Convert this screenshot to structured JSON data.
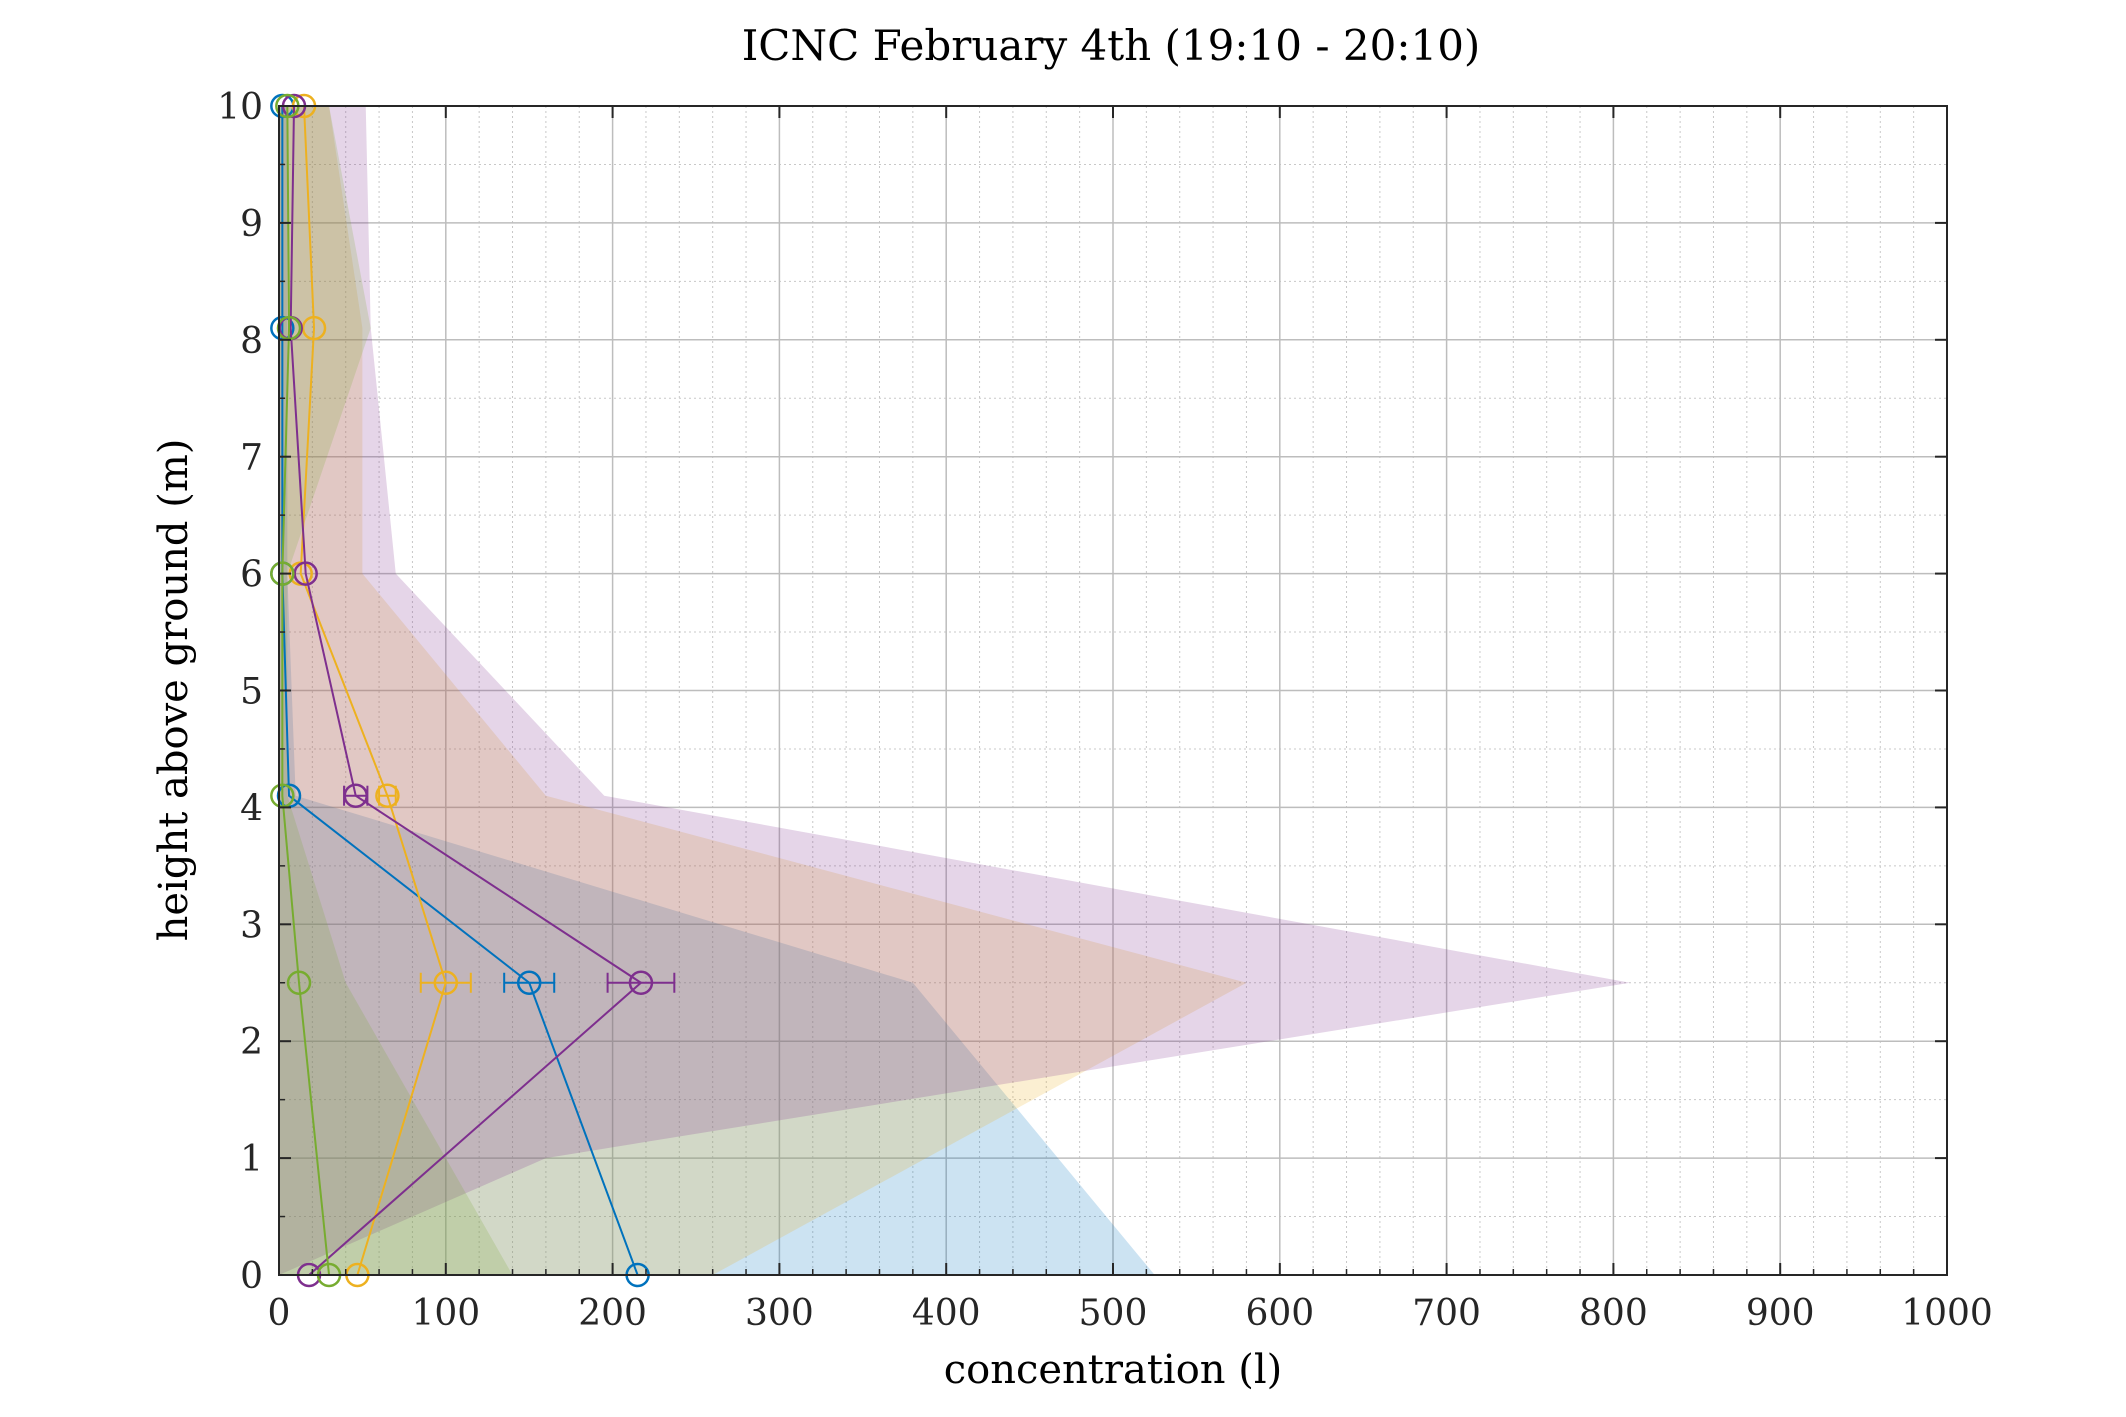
{
  "chart_data": {
    "type": "line",
    "title": "ICNC February 4th (19:10 - 20:10)",
    "xlabel": "concentration (l)",
    "ylabel": "height above ground (m)",
    "xlim": [
      0,
      1000
    ],
    "ylim": [
      0,
      10
    ],
    "x_ticks": [
      "0",
      "100",
      "200",
      "300",
      "400",
      "500",
      "600",
      "700",
      "800",
      "900",
      "1000"
    ],
    "y_ticks": [
      "0",
      "1",
      "2",
      "3",
      "4",
      "5",
      "6",
      "7",
      "8",
      "9",
      "10"
    ],
    "grid": true,
    "minor_grid": true,
    "series": [
      {
        "color": "#0072BD",
        "marker": "circle",
        "points": [
          [
            215,
            0
          ],
          [
            150,
            2.5
          ],
          [
            6,
            4.1
          ],
          [
            2,
            6
          ],
          [
            2,
            8.1
          ],
          [
            2,
            10
          ]
        ],
        "errors": [
          0,
          15,
          0,
          0,
          0,
          0
        ],
        "band": [
          [
            0,
            0
          ],
          [
            525,
            0
          ],
          [
            380,
            2.5
          ],
          [
            10,
            4.1
          ],
          [
            5,
            6
          ],
          [
            5,
            8.1
          ],
          [
            5,
            10
          ],
          [
            0,
            10
          ]
        ]
      },
      {
        "color": "#EDB120",
        "marker": "circle",
        "points": [
          [
            47,
            0
          ],
          [
            100,
            2.5
          ],
          [
            65,
            4.1
          ],
          [
            13,
            6
          ],
          [
            21,
            8.1
          ],
          [
            15,
            10
          ]
        ],
        "errors": [
          0,
          15,
          5,
          0,
          0,
          0
        ],
        "band": [
          [
            0,
            0
          ],
          [
            260,
            0
          ],
          [
            580,
            2.5
          ],
          [
            160,
            4.1
          ],
          [
            50,
            6
          ],
          [
            50,
            8.1
          ],
          [
            30,
            10
          ],
          [
            0,
            10
          ]
        ]
      },
      {
        "color": "#7E2F8E",
        "marker": "circle",
        "points": [
          [
            18,
            0
          ],
          [
            217,
            2.5
          ],
          [
            46,
            4.1
          ],
          [
            16,
            6
          ],
          [
            7,
            8.1
          ],
          [
            9,
            10
          ]
        ],
        "errors": [
          0,
          20,
          7,
          0,
          0,
          0
        ],
        "band": [
          [
            0,
            0
          ],
          [
            160,
            1.0
          ],
          [
            810,
            2.5
          ],
          [
            195,
            4.1
          ],
          [
            70,
            6
          ],
          [
            55,
            8.1
          ],
          [
            52,
            10
          ],
          [
            0,
            10
          ]
        ]
      },
      {
        "color": "#77AC30",
        "marker": "circle",
        "points": [
          [
            30,
            0
          ],
          [
            12,
            2.5
          ],
          [
            2,
            4.1
          ],
          [
            2,
            6
          ],
          [
            6,
            8.1
          ],
          [
            5,
            10
          ]
        ],
        "errors": [
          0,
          0,
          0,
          0,
          0,
          0
        ],
        "band": [
          [
            0,
            0
          ],
          [
            140,
            0
          ],
          [
            40,
            2.5
          ],
          [
            5,
            4.1
          ],
          [
            5,
            6
          ],
          [
            55,
            8.1
          ],
          [
            30,
            10
          ],
          [
            0,
            10
          ]
        ]
      }
    ]
  }
}
